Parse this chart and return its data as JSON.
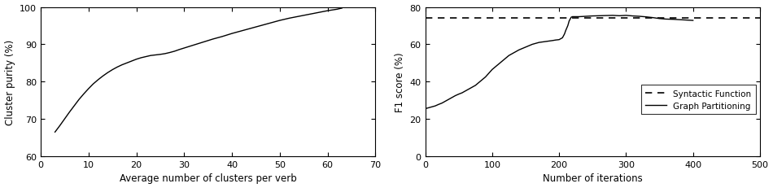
{
  "left": {
    "xlabel": "Average number of clusters per verb",
    "ylabel": "Cluster purity (%)",
    "xlim": [
      0,
      70
    ],
    "ylim": [
      60,
      100
    ],
    "xticks": [
      0,
      10,
      20,
      30,
      40,
      50,
      60,
      70
    ],
    "yticks": [
      60,
      70,
      80,
      90,
      100
    ],
    "curve_x": [
      3,
      4,
      5,
      6,
      7,
      8,
      9,
      10,
      11,
      12,
      13,
      14,
      15,
      16,
      17,
      18,
      19,
      20,
      21,
      22,
      23,
      24,
      25,
      26,
      27,
      28,
      29,
      30,
      32,
      34,
      36,
      38,
      40,
      42,
      44,
      46,
      48,
      50,
      52,
      54,
      56,
      58,
      60,
      62,
      63
    ],
    "curve_y": [
      66.5,
      68.2,
      70.0,
      71.8,
      73.5,
      75.2,
      76.7,
      78.1,
      79.4,
      80.5,
      81.5,
      82.4,
      83.2,
      83.9,
      84.5,
      85.0,
      85.5,
      86.0,
      86.4,
      86.7,
      87.0,
      87.15,
      87.3,
      87.5,
      87.8,
      88.15,
      88.6,
      89.0,
      89.8,
      90.6,
      91.4,
      92.1,
      92.9,
      93.6,
      94.3,
      95.0,
      95.7,
      96.4,
      97.0,
      97.5,
      98.0,
      98.5,
      99.0,
      99.4,
      99.7
    ]
  },
  "right": {
    "xlabel": "Number of iterations",
    "ylabel": "F1 score (%)",
    "xlim": [
      0,
      500
    ],
    "ylim": [
      0,
      80
    ],
    "xticks": [
      0,
      100,
      200,
      300,
      400,
      500
    ],
    "yticks": [
      0,
      20,
      40,
      60,
      80
    ],
    "dashed_y": 74.0,
    "legend_syntactic": "Syntactic Function",
    "legend_graph": "Graph Partitioning",
    "gp_x": [
      0,
      5,
      10,
      15,
      20,
      25,
      30,
      35,
      40,
      45,
      50,
      55,
      60,
      65,
      70,
      75,
      80,
      85,
      90,
      95,
      100,
      105,
      110,
      115,
      120,
      125,
      130,
      135,
      140,
      150,
      160,
      170,
      180,
      190,
      195,
      200,
      205,
      208,
      210,
      213,
      215,
      218,
      220,
      225,
      230,
      240,
      250,
      260,
      270,
      280,
      290,
      300,
      310,
      320,
      330,
      340,
      350,
      360,
      370,
      380,
      390,
      400
    ],
    "gp_y": [
      25.5,
      26.0,
      26.5,
      27.0,
      27.8,
      28.5,
      29.5,
      30.5,
      31.5,
      32.5,
      33.3,
      34.0,
      35.0,
      36.0,
      37.0,
      38.0,
      39.5,
      41.0,
      42.5,
      44.5,
      46.5,
      48.0,
      49.5,
      51.0,
      52.5,
      54.0,
      55.0,
      56.0,
      57.0,
      58.5,
      60.0,
      61.0,
      61.5,
      62.0,
      62.3,
      62.5,
      63.5,
      65.5,
      67.5,
      70.0,
      72.5,
      74.5,
      74.8,
      74.8,
      74.8,
      75.0,
      75.2,
      75.3,
      75.4,
      75.5,
      75.3,
      75.5,
      75.2,
      75.0,
      74.7,
      74.3,
      73.8,
      73.5,
      73.4,
      73.2,
      73.0,
      72.8
    ]
  }
}
